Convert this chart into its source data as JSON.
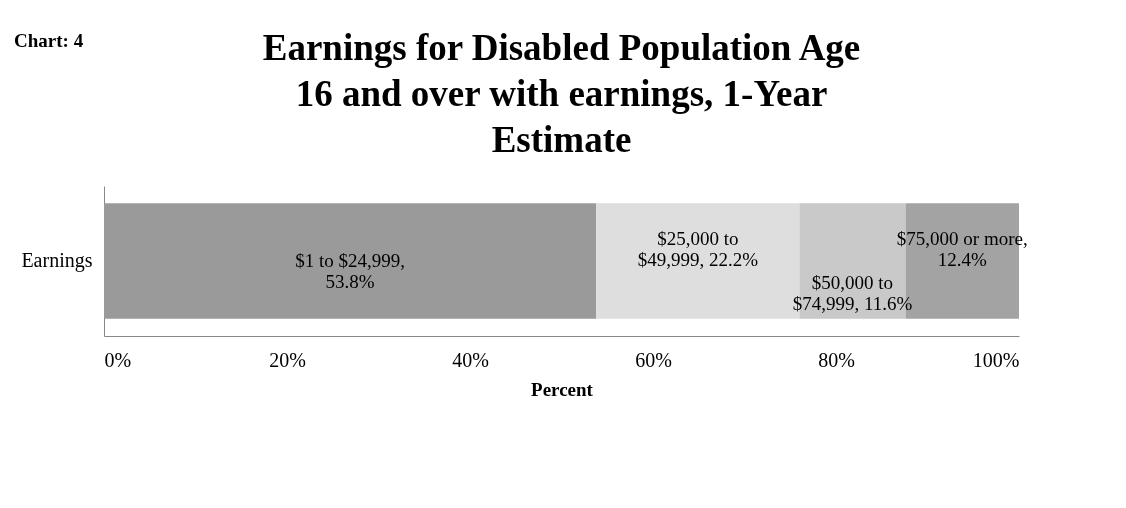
{
  "chart_data": {
    "type": "bar",
    "orientation": "horizontal",
    "stacked": true,
    "title": "Earnings for Disabled Population Age 16 and over with earnings, 1-Year Estimate",
    "annotations": [
      "Chart: 4"
    ],
    "xlabel": "Percent",
    "categories": [
      "Earnings"
    ],
    "series": [
      {
        "color": "#9a9a9a",
        "values": [
          53.8
        ],
        "value_labels": [
          "$1 to $24,999, 53.8%"
        ]
      },
      {
        "color": "#dedede",
        "values": [
          22.2
        ],
        "value_labels": [
          "$25,000 to $49,999, 22.2%"
        ]
      },
      {
        "color": "#c9c9c9",
        "values": [
          11.6
        ],
        "value_labels": [
          "$50,000 to $74,999, 11.6%"
        ]
      },
      {
        "color": "#a3a3a3",
        "values": [
          12.4
        ],
        "value_labels": [
          "$75,000 or more, 12.4%"
        ]
      }
    ],
    "xlim": [
      0,
      100
    ],
    "xticks": [
      {
        "value": 0,
        "label": "0%"
      },
      {
        "value": 20,
        "label": "20%"
      },
      {
        "value": 40,
        "label": "40%"
      },
      {
        "value": 60,
        "label": "60%"
      },
      {
        "value": 80,
        "label": "80%"
      },
      {
        "value": 100,
        "label": "100%"
      }
    ],
    "grid": false,
    "legend": false
  }
}
